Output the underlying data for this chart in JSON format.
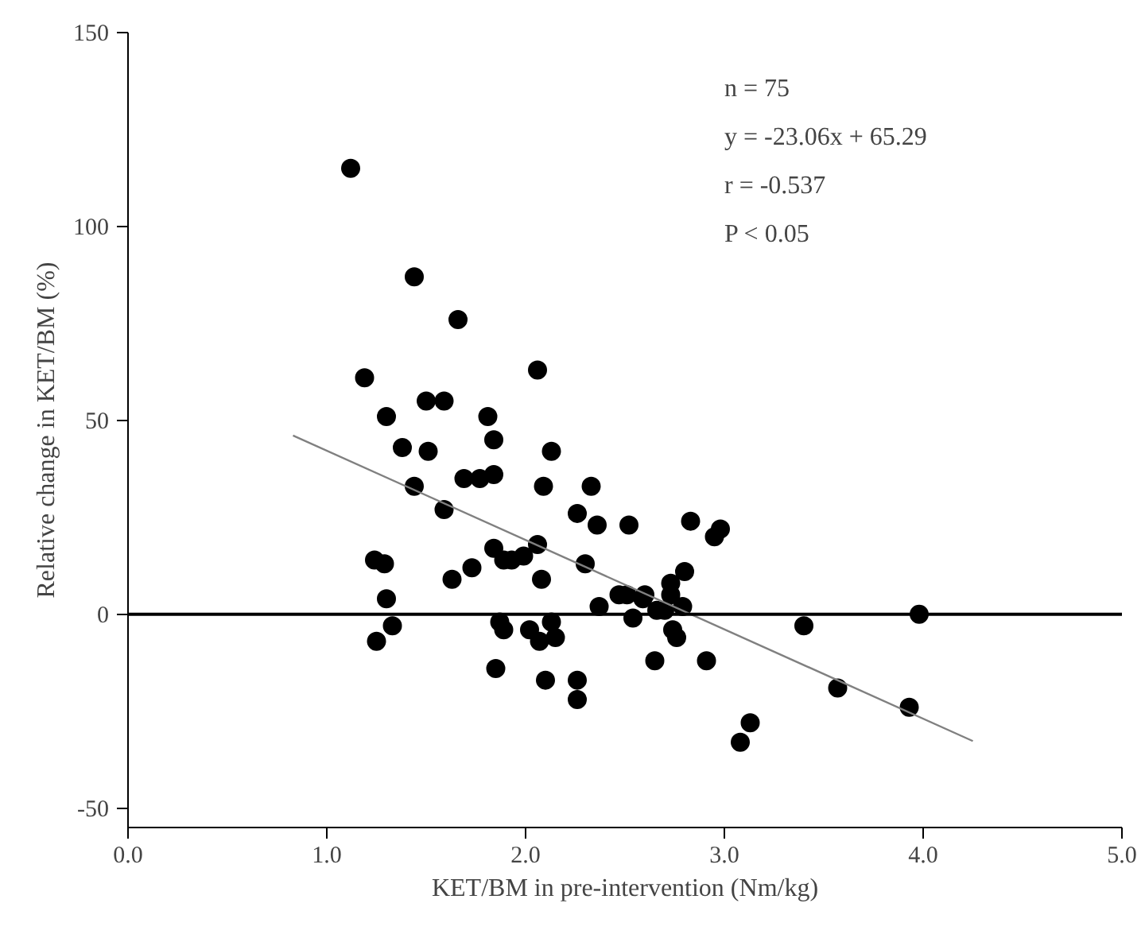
{
  "chart_data": {
    "type": "scatter",
    "xlabel": "KET/BM in pre-intervention (Nm/kg)",
    "ylabel": "Relative change in KET/BM (%)",
    "xlim": [
      0,
      5
    ],
    "ylim": [
      -55,
      150
    ],
    "xticks": [
      {
        "value": 0,
        "label": "0.0"
      },
      {
        "value": 1,
        "label": "1.0"
      },
      {
        "value": 2,
        "label": "2.0"
      },
      {
        "value": 3,
        "label": "3.0"
      },
      {
        "value": 4,
        "label": "4.0"
      },
      {
        "value": 5,
        "label": "5.0"
      }
    ],
    "yticks": [
      -50,
      0,
      50,
      100,
      150
    ],
    "grid": false,
    "series": [
      {
        "color": "#000000",
        "marker": "circle",
        "x": [
          1.12,
          1.44,
          1.66,
          1.19,
          2.06,
          1.3,
          1.5,
          1.59,
          1.81,
          1.38,
          1.51,
          1.84,
          2.13,
          1.44,
          1.69,
          1.77,
          1.84,
          2.09,
          2.33,
          1.59,
          2.26,
          2.36,
          2.52,
          1.63,
          1.73,
          1.84,
          1.93,
          1.99,
          1.89,
          2.06,
          2.08,
          1.29,
          1.24,
          1.3,
          1.33,
          1.25,
          1.87,
          1.89,
          2.02,
          2.07,
          2.15,
          2.13,
          1.85,
          2.1,
          2.26,
          2.26,
          2.3,
          2.37,
          2.47,
          2.51,
          2.6,
          2.54,
          2.59,
          2.66,
          2.73,
          2.7,
          2.74,
          2.76,
          2.65,
          2.91,
          2.8,
          2.83,
          2.95,
          2.98,
          2.79,
          2.73,
          3.4,
          3.57,
          3.98,
          3.93,
          3.13,
          3.08
        ],
        "values": [
          115,
          87,
          76,
          61,
          63,
          51,
          55,
          55,
          51,
          43,
          42,
          45,
          42,
          33,
          35,
          35,
          36,
          33,
          33,
          27,
          26,
          23,
          23,
          9,
          12,
          17,
          14,
          15,
          14,
          18,
          9,
          13,
          14,
          4,
          -3,
          -7,
          -2,
          -4,
          -4,
          -7,
          -6,
          -2,
          -14,
          -17,
          -17,
          -22,
          13,
          2,
          5,
          5,
          5,
          -1,
          4,
          1,
          5,
          1,
          -4,
          -6,
          -12,
          -12,
          11,
          24,
          20,
          22,
          2,
          8,
          -3,
          -19,
          0,
          -24,
          -28,
          -33
        ]
      },
      {
        "type": "line",
        "marker": "none",
        "color": "#808080",
        "x": [
          0.83,
          4.25
        ],
        "values": [
          46.1,
          -32.7
        ]
      }
    ],
    "ref_lines": [
      {
        "axis": "y",
        "value": 0,
        "color": "#000000"
      }
    ],
    "annotations": [
      "n = 75",
      "y = -23.06x + 65.29",
      "r = -0.537",
      "P < 0.05"
    ]
  }
}
